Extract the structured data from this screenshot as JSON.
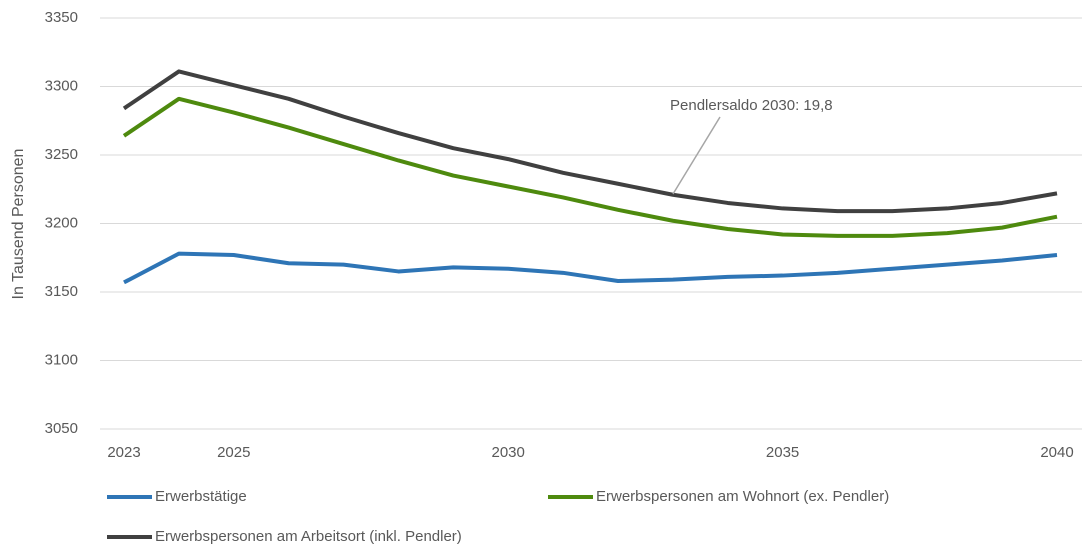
{
  "chart_data": {
    "type": "line",
    "y_label": "In Tausend Personen",
    "annotation": "Pendlersaldo 2030: 19,8",
    "x": [
      2023,
      2024,
      2025,
      2026,
      2027,
      2028,
      2029,
      2030,
      2031,
      2032,
      2033,
      2034,
      2035,
      2036,
      2037,
      2038,
      2039,
      2040
    ],
    "xlim": [
      2023,
      2040
    ],
    "xticks": [
      2023,
      2025,
      2030,
      2035,
      2040
    ],
    "ylim": [
      3050,
      3350
    ],
    "yticks": [
      3050,
      3100,
      3150,
      3200,
      3250,
      3300,
      3350
    ],
    "grid": true,
    "legend": "bottom",
    "series": [
      {
        "name": "Erwerbstätige",
        "color": "#2e75b6",
        "values": [
          3157,
          3178,
          3177,
          3171,
          3170,
          3165,
          3168,
          3167,
          3164,
          3158,
          3159,
          3161,
          3162,
          3164,
          3167,
          3170,
          3173,
          3177
        ]
      },
      {
        "name": "Erwerbspersonen am Wohnort (ex. Pendler)",
        "color": "#4e8a0e",
        "values": [
          3264,
          3291,
          3281,
          3270,
          3258,
          3246,
          3235,
          3227,
          3219,
          3210,
          3202,
          3196,
          3192,
          3191,
          3191,
          3193,
          3197,
          3205
        ]
      },
      {
        "name": "Erwerbspersonen am Arbeitsort (inkl. Pendler)",
        "color": "#404040",
        "values": [
          3284,
          3311,
          3301,
          3291,
          3278,
          3266,
          3255,
          3247,
          3237,
          3229,
          3221,
          3215,
          3211,
          3209,
          3209,
          3211,
          3215,
          3222
        ]
      }
    ]
  }
}
